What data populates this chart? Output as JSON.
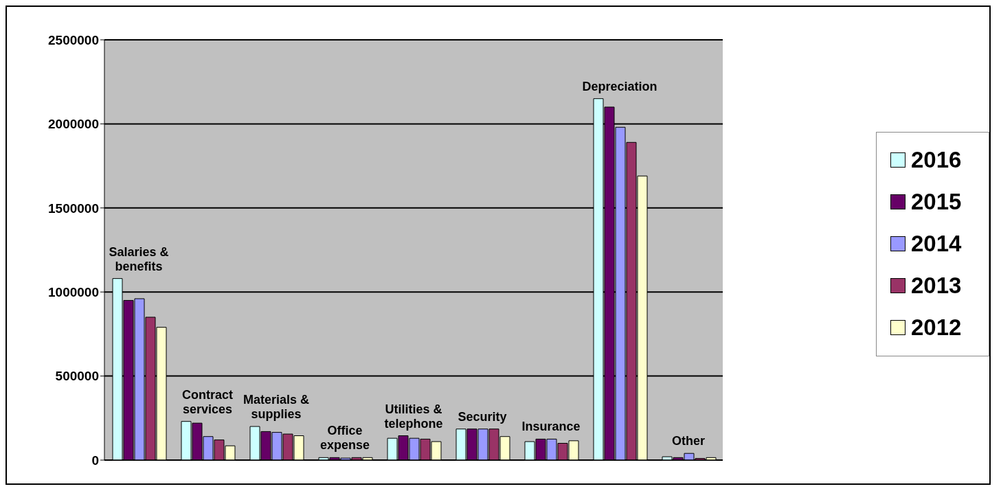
{
  "chart_data": {
    "type": "bar",
    "categories": [
      "Salaries & benefits",
      "Contract services",
      "Materials & supplies",
      "Office expense",
      "Utilities & telephone",
      "Security",
      "Insurance",
      "Depreciation",
      "Other"
    ],
    "series": [
      {
        "name": "2016",
        "color": "#ccffff",
        "values": [
          1080000,
          230000,
          200000,
          15000,
          130000,
          185000,
          110000,
          2150000,
          20000
        ]
      },
      {
        "name": "2015",
        "color": "#660066",
        "values": [
          950000,
          220000,
          170000,
          15000,
          145000,
          185000,
          125000,
          2100000,
          15000
        ]
      },
      {
        "name": "2014",
        "color": "#9999ff",
        "values": [
          960000,
          140000,
          165000,
          12000,
          130000,
          185000,
          125000,
          1980000,
          40000
        ]
      },
      {
        "name": "2013",
        "color": "#993366",
        "values": [
          850000,
          120000,
          155000,
          15000,
          125000,
          185000,
          100000,
          1890000,
          10000
        ]
      },
      {
        "name": "2012",
        "color": "#ffffcc",
        "values": [
          790000,
          85000,
          145000,
          15000,
          110000,
          140000,
          115000,
          1690000,
          15000
        ]
      }
    ],
    "ylim": [
      0,
      2500000
    ],
    "yticks": [
      0,
      500000,
      1000000,
      1500000,
      2000000,
      2500000
    ],
    "grid": "y",
    "legend": "right"
  }
}
